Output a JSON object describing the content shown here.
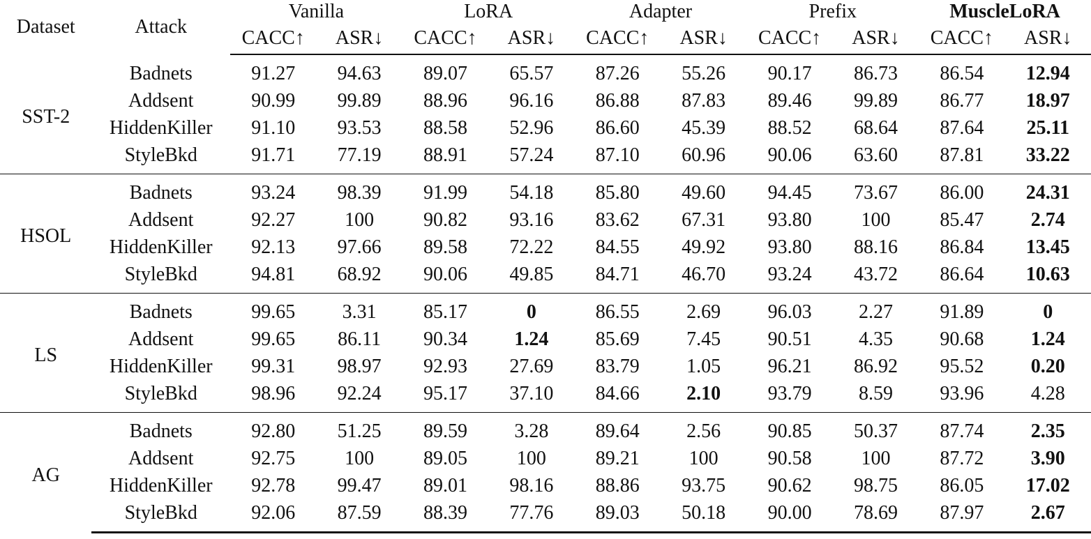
{
  "columns": {
    "dataset": "Dataset",
    "attack": "Attack",
    "methods": [
      {
        "name": "Vanilla",
        "bold": false
      },
      {
        "name": "LoRA",
        "bold": false
      },
      {
        "name": "Adapter",
        "bold": false
      },
      {
        "name": "Prefix",
        "bold": false
      },
      {
        "name": "MuscleLoRA",
        "bold": true
      }
    ],
    "metrics": [
      "CACC↑",
      "ASR↓"
    ]
  },
  "groups": [
    {
      "dataset": "SST-2",
      "rows": [
        {
          "attack": "Badnets",
          "values": [
            "91.27",
            "94.63",
            "89.07",
            "65.57",
            "87.26",
            "55.26",
            "90.17",
            "86.73",
            "86.54",
            "12.94"
          ],
          "bold": [
            9
          ]
        },
        {
          "attack": "Addsent",
          "values": [
            "90.99",
            "99.89",
            "88.96",
            "96.16",
            "86.88",
            "87.83",
            "89.46",
            "99.89",
            "86.77",
            "18.97"
          ],
          "bold": [
            9
          ]
        },
        {
          "attack": "HiddenKiller",
          "values": [
            "91.10",
            "93.53",
            "88.58",
            "52.96",
            "86.60",
            "45.39",
            "88.52",
            "68.64",
            "87.64",
            "25.11"
          ],
          "bold": [
            9
          ]
        },
        {
          "attack": "StyleBkd",
          "values": [
            "91.71",
            "77.19",
            "88.91",
            "57.24",
            "87.10",
            "60.96",
            "90.06",
            "63.60",
            "87.81",
            "33.22"
          ],
          "bold": [
            9
          ]
        }
      ]
    },
    {
      "dataset": "HSOL",
      "rows": [
        {
          "attack": "Badnets",
          "values": [
            "93.24",
            "98.39",
            "91.99",
            "54.18",
            "85.80",
            "49.60",
            "94.45",
            "73.67",
            "86.00",
            "24.31"
          ],
          "bold": [
            9
          ]
        },
        {
          "attack": "Addsent",
          "values": [
            "92.27",
            "100",
            "90.82",
            "93.16",
            "83.62",
            "67.31",
            "93.80",
            "100",
            "85.47",
            "2.74"
          ],
          "bold": [
            9
          ]
        },
        {
          "attack": "HiddenKiller",
          "values": [
            "92.13",
            "97.66",
            "89.58",
            "72.22",
            "84.55",
            "49.92",
            "93.80",
            "88.16",
            "86.84",
            "13.45"
          ],
          "bold": [
            9
          ]
        },
        {
          "attack": "StyleBkd",
          "values": [
            "94.81",
            "68.92",
            "90.06",
            "49.85",
            "84.71",
            "46.70",
            "93.24",
            "43.72",
            "86.64",
            "10.63"
          ],
          "bold": [
            9
          ]
        }
      ]
    },
    {
      "dataset": "LS",
      "rows": [
        {
          "attack": "Badnets",
          "values": [
            "99.65",
            "3.31",
            "85.17",
            "0",
            "86.55",
            "2.69",
            "96.03",
            "2.27",
            "91.89",
            "0"
          ],
          "bold": [
            3,
            9
          ]
        },
        {
          "attack": "Addsent",
          "values": [
            "99.65",
            "86.11",
            "90.34",
            "1.24",
            "85.69",
            "7.45",
            "90.51",
            "4.35",
            "90.68",
            "1.24"
          ],
          "bold": [
            3,
            9
          ]
        },
        {
          "attack": "HiddenKiller",
          "values": [
            "99.31",
            "98.97",
            "92.93",
            "27.69",
            "83.79",
            "1.05",
            "96.21",
            "86.92",
            "95.52",
            "0.20"
          ],
          "bold": [
            9
          ]
        },
        {
          "attack": "StyleBkd",
          "values": [
            "98.96",
            "92.24",
            "95.17",
            "37.10",
            "84.66",
            "2.10",
            "93.79",
            "8.59",
            "93.96",
            "4.28"
          ],
          "bold": [
            5
          ]
        }
      ]
    },
    {
      "dataset": "AG",
      "rows": [
        {
          "attack": "Badnets",
          "values": [
            "92.80",
            "51.25",
            "89.59",
            "3.28",
            "89.64",
            "2.56",
            "90.85",
            "50.37",
            "87.74",
            "2.35"
          ],
          "bold": [
            9
          ]
        },
        {
          "attack": "Addsent",
          "values": [
            "92.75",
            "100",
            "89.05",
            "100",
            "89.21",
            "100",
            "90.58",
            "100",
            "87.72",
            "3.90"
          ],
          "bold": [
            9
          ]
        },
        {
          "attack": "HiddenKiller",
          "values": [
            "92.78",
            "99.47",
            "89.01",
            "98.16",
            "88.86",
            "93.75",
            "90.62",
            "98.75",
            "86.05",
            "17.02"
          ],
          "bold": [
            9
          ]
        },
        {
          "attack": "StyleBkd",
          "values": [
            "92.06",
            "87.59",
            "88.39",
            "77.76",
            "89.03",
            "50.18",
            "90.00",
            "78.69",
            "87.97",
            "2.67"
          ],
          "bold": [
            9
          ]
        }
      ]
    }
  ]
}
